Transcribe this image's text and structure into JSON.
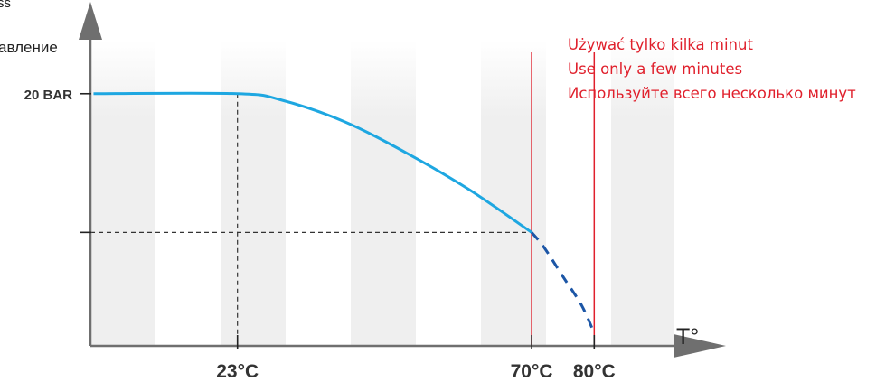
{
  "chart_data": {
    "type": "line",
    "title": "",
    "xlabel": "T°",
    "ylabel_fragment": "авление",
    "ylabel_top_fragment": "ss",
    "x_ticks": [
      {
        "value": 23,
        "label": "23°C"
      },
      {
        "value": 70,
        "label": "70°C"
      },
      {
        "value": 80,
        "label": "80°C"
      }
    ],
    "y_ticks": [
      {
        "value": 20,
        "label": "20 BAR"
      },
      {
        "value": 9,
        "label": ""
      }
    ],
    "xlim": [
      -0.5,
      97
    ],
    "ylim": [
      0,
      26
    ],
    "series": [
      {
        "style": "solid",
        "color": "#1ea7e1",
        "points": [
          [
            0,
            20
          ],
          [
            23,
            20
          ],
          [
            30,
            19.5
          ],
          [
            40,
            17.8
          ],
          [
            50,
            15.3
          ],
          [
            60,
            12.4
          ],
          [
            70,
            9
          ]
        ]
      },
      {
        "style": "dashed",
        "color": "#1c56a6",
        "points": [
          [
            70,
            9
          ],
          [
            72,
            7.8
          ],
          [
            75,
            5.5
          ],
          [
            78,
            3.2
          ],
          [
            80,
            1
          ]
        ]
      }
    ],
    "guides": [
      {
        "kind": "vertical-dashed",
        "x": 23,
        "from_y": 0,
        "to_y": 20
      },
      {
        "kind": "horizontal-dashed",
        "y": 9,
        "from_x": 0,
        "to_x": 70
      }
    ],
    "limit_lines": [
      {
        "x": 70,
        "color": "#e0202c"
      },
      {
        "x": 80,
        "color": "#e0202c"
      }
    ],
    "warning_notes": [
      "Używać tylko kilka minut",
      "Use only a few minutes",
      "Используйте всего несколько минут"
    ],
    "colors": {
      "warning": "#e0202c",
      "axis": "#6f6f6f",
      "band": "#efefef",
      "guide": "#333333"
    },
    "grid": false
  }
}
